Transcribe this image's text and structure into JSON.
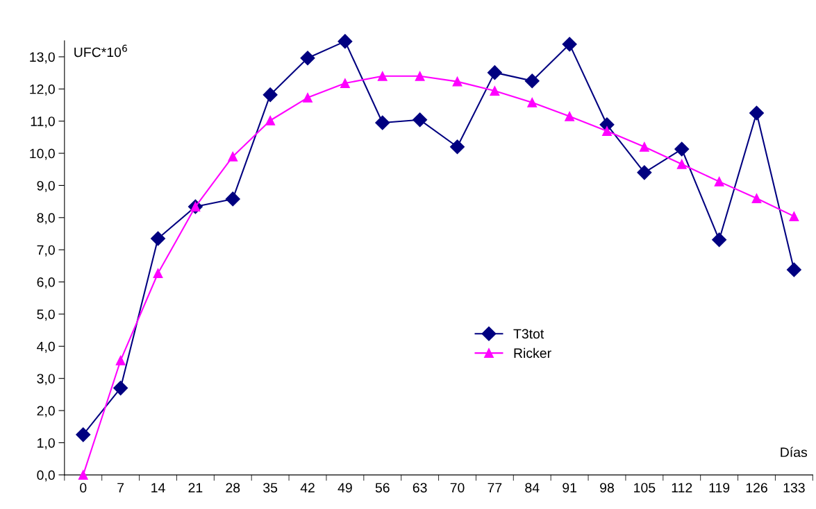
{
  "chart_data": {
    "type": "line",
    "ylabel": "UFC*10$^{6}$",
    "xlabel": "Días",
    "categories": [
      "0",
      "7",
      "14",
      "21",
      "28",
      "35",
      "42",
      "49",
      "56",
      "63",
      "70",
      "77",
      "84",
      "91",
      "98",
      "105",
      "112",
      "119",
      "126",
      "133"
    ],
    "series": [
      {
        "name": "T3tot",
        "color": "#000080",
        "marker": "diamond",
        "values": [
          1.25,
          2.7,
          7.35,
          8.34,
          8.58,
          11.82,
          12.96,
          13.48,
          10.95,
          11.04,
          10.2,
          12.51,
          12.25,
          13.39,
          10.89,
          9.4,
          10.13,
          7.31,
          11.25,
          6.38
        ]
      },
      {
        "name": "Ricker",
        "color": "#ff00ff",
        "marker": "triangle",
        "values": [
          0.0,
          3.56,
          6.27,
          8.34,
          9.9,
          11.02,
          11.73,
          12.18,
          12.4,
          12.4,
          12.23,
          11.94,
          11.58,
          11.15,
          10.69,
          10.2,
          9.66,
          9.12,
          8.6,
          8.04
        ]
      }
    ],
    "ylim": [
      0,
      13.5
    ],
    "yticks": [
      {
        "value": 0,
        "label": "0,0"
      },
      {
        "value": 1,
        "label": "1,0"
      },
      {
        "value": 2,
        "label": "2,0"
      },
      {
        "value": 3,
        "label": "3,0"
      },
      {
        "value": 4,
        "label": "4,0"
      },
      {
        "value": 5,
        "label": "5,0"
      },
      {
        "value": 6,
        "label": "6,0"
      },
      {
        "value": 7,
        "label": "7,0"
      },
      {
        "value": 8,
        "label": "8,0"
      },
      {
        "value": 9,
        "label": "9,0"
      },
      {
        "value": 10,
        "label": "10,0"
      },
      {
        "value": 11,
        "label": "11,0"
      },
      {
        "value": 12,
        "label": "12,0"
      },
      {
        "value": 13,
        "label": "13,0"
      }
    ],
    "legend": "center",
    "grid": false
  }
}
